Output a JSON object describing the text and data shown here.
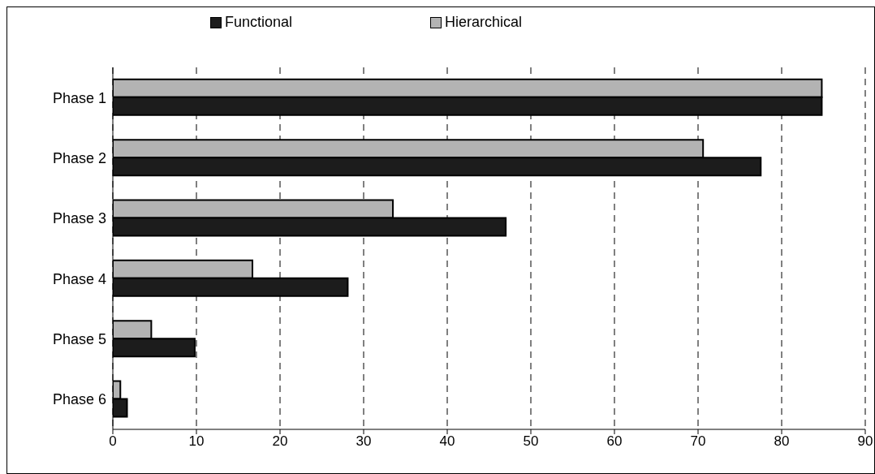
{
  "chart_data": {
    "type": "bar",
    "orientation": "horizontal",
    "categories": [
      "Phase 1",
      "Phase 2",
      "Phase 3",
      "Phase 4",
      "Phase 5",
      "Phase 6"
    ],
    "series": [
      {
        "name": "Functional",
        "color": "#1c1c1c",
        "values": [
          84.8,
          77.5,
          47.0,
          28.1,
          9.8,
          1.7
        ]
      },
      {
        "name": "Hierarchical",
        "color": "#b3b3b3",
        "values": [
          84.8,
          70.6,
          33.5,
          16.7,
          4.6,
          0.9
        ]
      }
    ],
    "xlim": [
      0,
      90
    ],
    "xticks": [
      0,
      10,
      20,
      30,
      40,
      50,
      60,
      70,
      80,
      90
    ],
    "grid": "x",
    "legend": "top"
  }
}
